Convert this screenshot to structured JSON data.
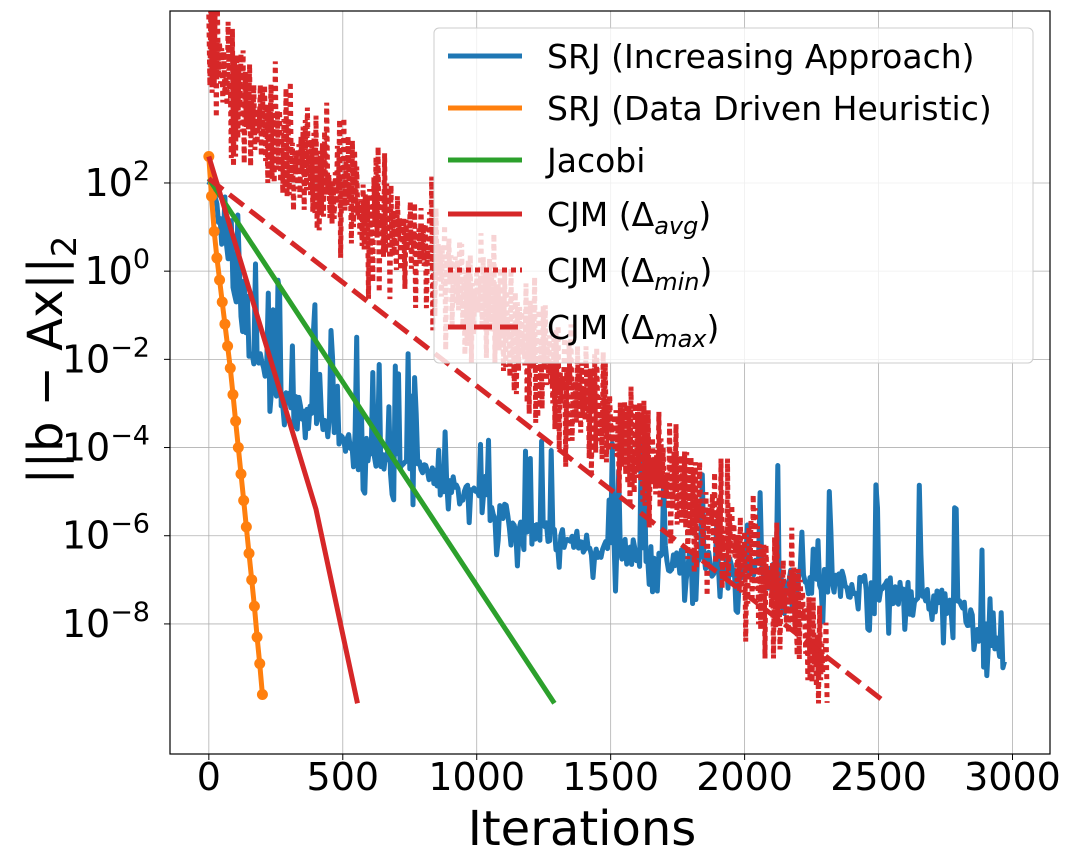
{
  "chart_data": {
    "type": "line",
    "xlabel": "Iterations",
    "ylabel": "||b − Ax||",
    "ylabel_sub": "2",
    "x_ticks": [
      0,
      500,
      1000,
      1500,
      2000,
      2500,
      3000
    ],
    "x_tick_labels": [
      "0",
      "500",
      "1000",
      "1500",
      "2000",
      "2500",
      "3000"
    ],
    "xlim": [
      -145,
      3140
    ],
    "y_log": true,
    "ylim_log10": [
      -10.95,
      5.9
    ],
    "y_ticks": [
      {
        "exp": 2,
        "base": "10",
        "sup": "2"
      },
      {
        "exp": 0,
        "base": "10",
        "sup": "0"
      },
      {
        "exp": -2,
        "base": "10",
        "sup": "−2"
      },
      {
        "exp": -4,
        "base": "10",
        "sup": "−4"
      },
      {
        "exp": -6,
        "base": "10",
        "sup": "−6"
      },
      {
        "exp": -8,
        "base": "10",
        "sup": "−8"
      }
    ],
    "grid": true,
    "legend_position": "top-right",
    "series": [
      {
        "name": "SRJ (Increasing Approach)",
        "label": "SRJ (Increasing Approach)",
        "color": "#1f77b4",
        "style": "solid",
        "description": "noisy decay from ~1e2 to ~1e-9 with spikes",
        "x": [
          0,
          60,
          150,
          300,
          450,
          600,
          800,
          1000,
          1200,
          1400,
          1600,
          1800,
          2000,
          2200,
          2400,
          2600,
          2800,
          2975
        ],
        "log10_y": [
          2.4,
          0.5,
          -1.8,
          -3.0,
          -3.6,
          -4.1,
          -4.6,
          -5.2,
          -5.9,
          -6.2,
          -6.4,
          -6.6,
          -6.8,
          -7.0,
          -7.1,
          -7.3,
          -7.6,
          -8.8
        ]
      },
      {
        "name": "SRJ (Data Driven Heuristic)",
        "label": "SRJ (Data Driven Heuristic)",
        "color": "#ff7f0e",
        "style": "solid-markers",
        "x": [
          0,
          10,
          20,
          30,
          40,
          50,
          60,
          70,
          80,
          90,
          100,
          110,
          120,
          130,
          140,
          150,
          160,
          170,
          180,
          190,
          200
        ],
        "log10_y": [
          2.6,
          1.7,
          0.9,
          0.3,
          -0.2,
          -0.7,
          -1.2,
          -1.7,
          -2.2,
          -2.8,
          -3.4,
          -4.0,
          -4.6,
          -5.2,
          -5.8,
          -6.4,
          -7.0,
          -7.6,
          -8.3,
          -8.9,
          -9.6
        ]
      },
      {
        "name": "Jacobi",
        "label": "Jacobi",
        "color": "#2ca02c",
        "style": "solid",
        "x": [
          0,
          1290
        ],
        "log10_y": [
          2.1,
          -9.8
        ]
      },
      {
        "name": "CJM (Δavg)",
        "label_main": "CJM (Δ",
        "label_sub": "avg",
        "label_end": ")",
        "color": "#d62728",
        "style": "solid",
        "x": [
          0,
          100,
          200,
          300,
          400,
          555
        ],
        "log10_y": [
          2.6,
          0.6,
          -1.4,
          -3.4,
          -5.4,
          -9.8
        ]
      },
      {
        "name": "CJM (Δmin)",
        "label_main": "CJM (Δ",
        "label_sub": "min",
        "label_end": ")",
        "color": "#d62728",
        "style": "dotted",
        "description": "highly oscillating decay from ~1e5 to ~1e-9",
        "x": [
          0,
          100,
          200,
          400,
          600,
          800,
          1000,
          1200,
          1400,
          1600,
          1800,
          2000,
          2200,
          2310
        ],
        "log10_y": [
          5.0,
          4.0,
          3.4,
          2.3,
          1.3,
          0.5,
          -0.5,
          -1.8,
          -2.8,
          -4.2,
          -5.2,
          -6.6,
          -7.6,
          -8.9
        ]
      },
      {
        "name": "CJM (Δmax)",
        "label_main": "CJM (Δ",
        "label_sub": "max",
        "label_end": ")",
        "color": "#d62728",
        "style": "dashed",
        "x": [
          0,
          2530
        ],
        "log10_y": [
          2.1,
          -9.8
        ]
      }
    ]
  }
}
